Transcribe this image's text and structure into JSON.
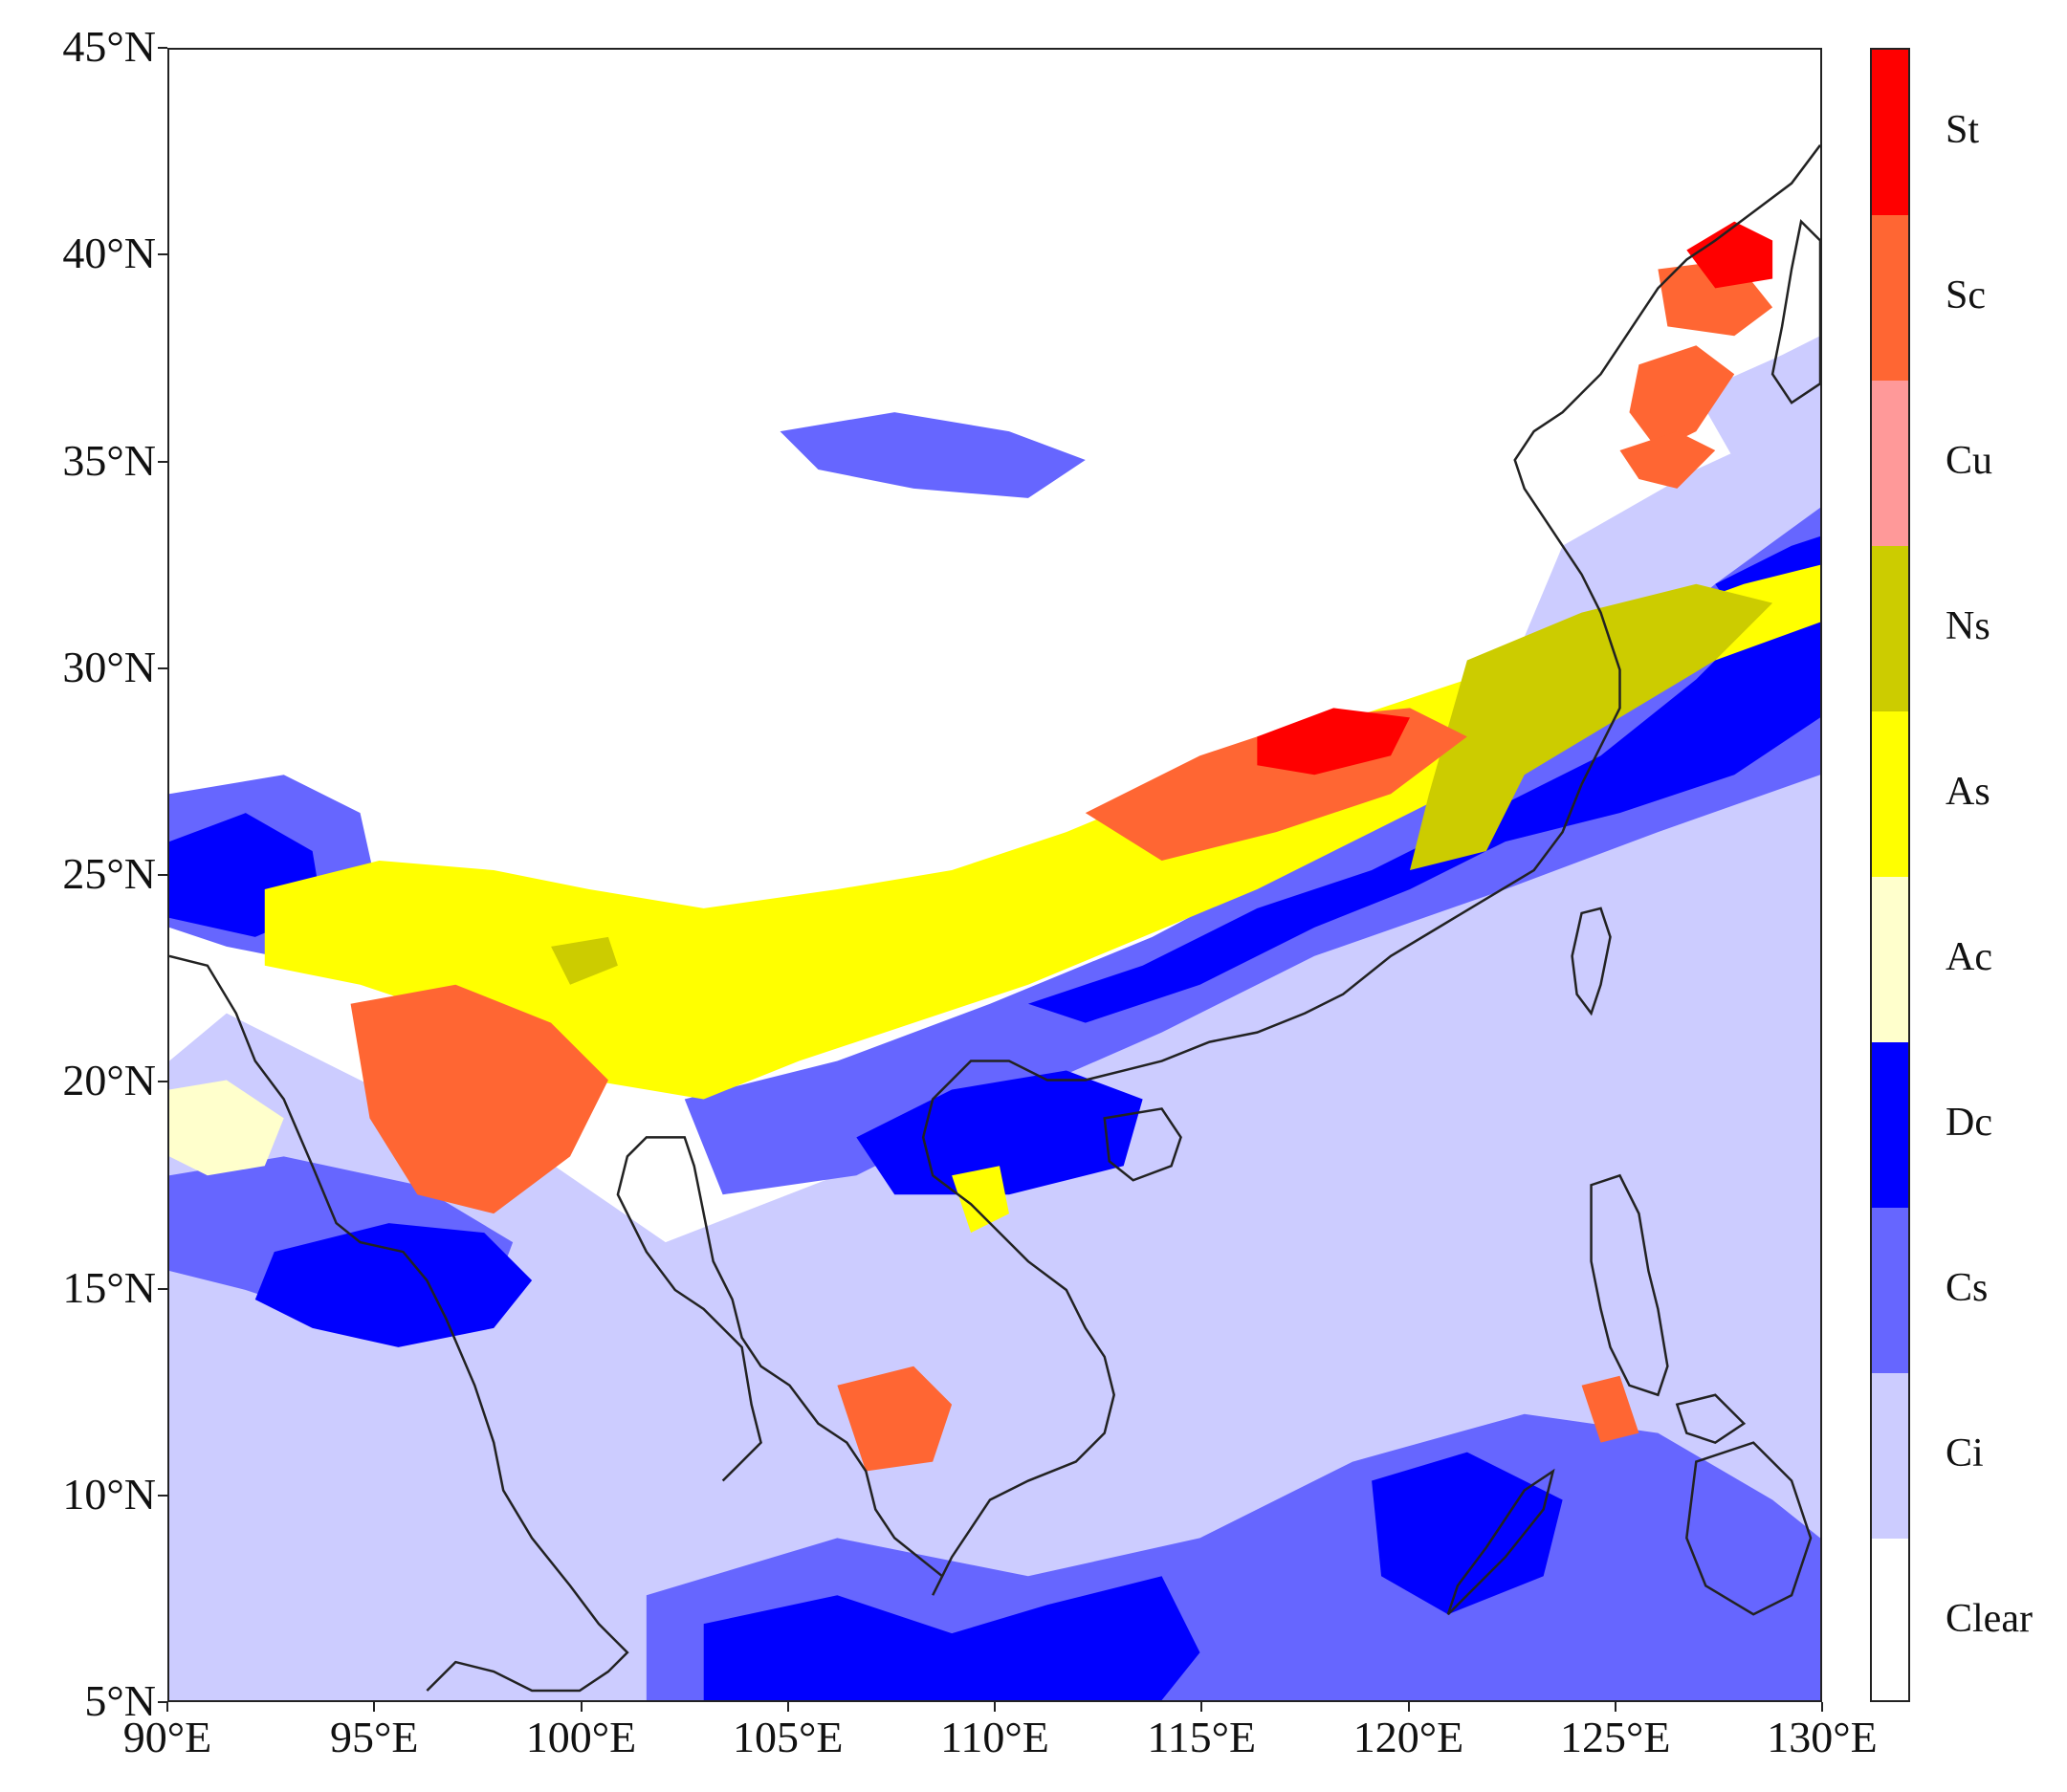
{
  "map": {
    "lat_ticks": [
      "45°N",
      "40°N",
      "35°N",
      "30°N",
      "25°N",
      "20°N",
      "15°N",
      "10°N",
      "5°N"
    ],
    "lon_ticks": [
      "90°E",
      "95°E",
      "100°E",
      "105°E",
      "110°E",
      "115°E",
      "120°E",
      "125°E",
      "130°E"
    ],
    "lat_range": [
      5,
      45
    ],
    "lon_range": [
      90,
      130
    ]
  },
  "legend": {
    "classes": [
      {
        "label": "St",
        "color": "#ff0000"
      },
      {
        "label": "Sc",
        "color": "#ff6633"
      },
      {
        "label": "Cu",
        "color": "#ff9999"
      },
      {
        "label": "Ns",
        "color": "#cccc00"
      },
      {
        "label": "As",
        "color": "#ffff00"
      },
      {
        "label": "Ac",
        "color": "#ffffcc"
      },
      {
        "label": "Dc",
        "color": "#0000ff"
      },
      {
        "label": "Cs",
        "color": "#6666ff"
      },
      {
        "label": "Ci",
        "color": "#ccccff"
      },
      {
        "label": "Clear",
        "color": "#ffffff"
      }
    ]
  }
}
